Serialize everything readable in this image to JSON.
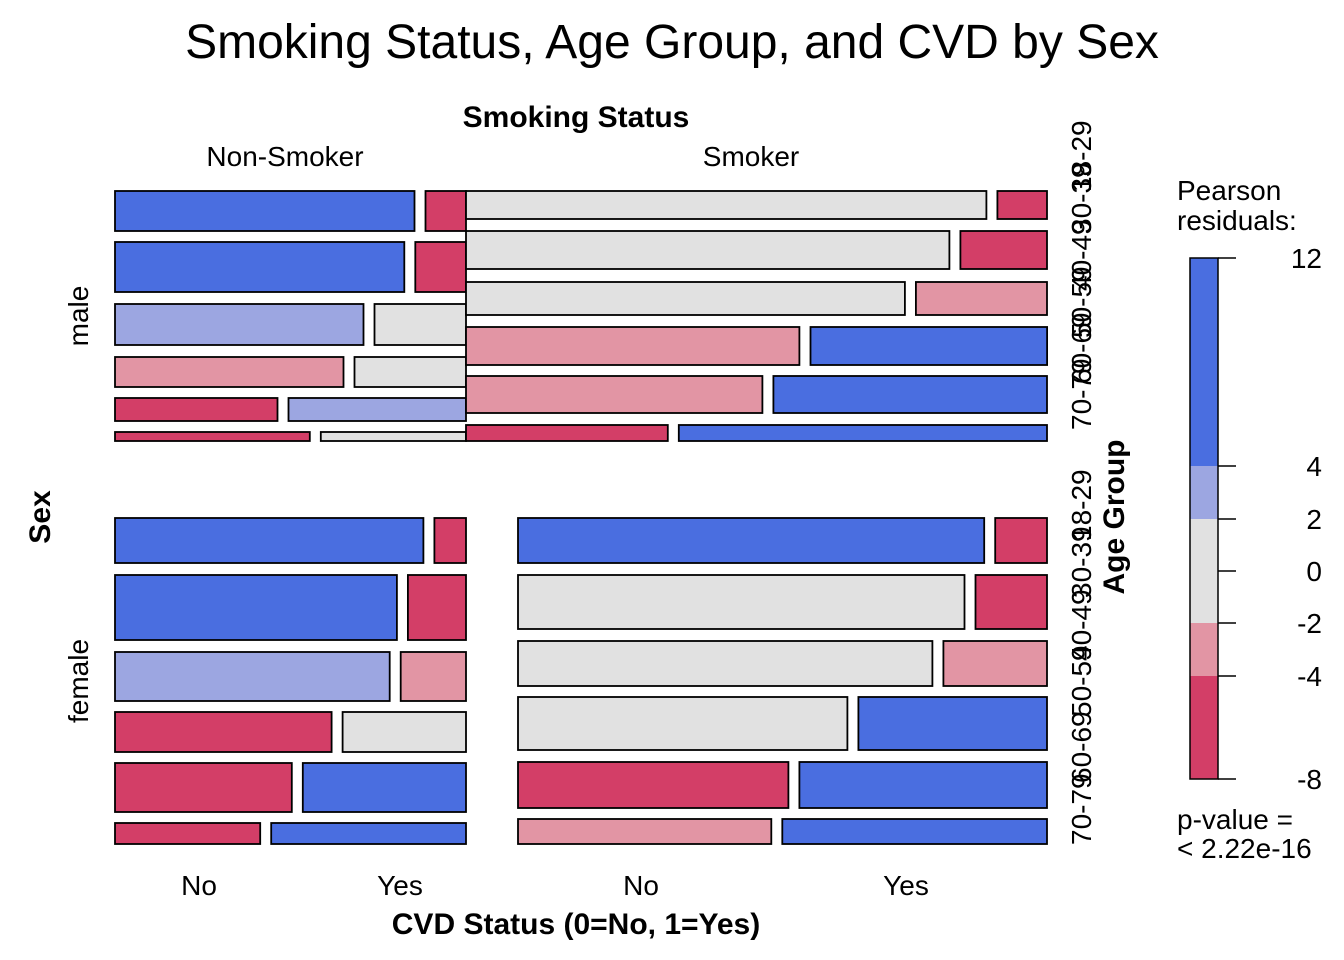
{
  "chart_data": {
    "type": "mosaic",
    "title": "Smoking Status, Age Group, and CVD by Sex",
    "smoking_axis_label": "Smoking Status",
    "smoking_levels": [
      "Non-Smoker",
      "Smoker"
    ],
    "sex_axis_label": "Sex",
    "sex_levels": [
      "male",
      "female"
    ],
    "age_axis_label": "Age Group",
    "age_levels": [
      "18-29",
      "30-39",
      "40-49",
      "50-59",
      "60-69",
      "70-79"
    ],
    "cvd_axis_label": "CVD Status (0=No, 1=Yes)",
    "cvd_levels": [
      "No",
      "Yes"
    ],
    "legend": {
      "title": "Pearson residuals:",
      "breaks": [
        -8,
        -4,
        -2,
        0,
        2,
        4,
        12
      ],
      "ticks": [
        "12",
        "4",
        "2",
        "0",
        "-2",
        "-4",
        "-8"
      ],
      "colors": {
        "strong_pos": "#4a6ee0",
        "mild_pos": "#9ca6e1",
        "neutral": "#e1e1e1",
        "mild_neg": "#e295a4",
        "strong_neg": "#d33e67"
      },
      "pvalue_label": "p-value =",
      "pvalue": "< 2.22e-16"
    },
    "cells": [
      {
        "sex": "male",
        "smoking": "Non-Smoker",
        "age": "18-29",
        "cvd_no_share": 0.881,
        "residual_no": "strong_pos",
        "residual_yes": "strong_neg"
      },
      {
        "sex": "male",
        "smoking": "Non-Smoker",
        "age": "30-39",
        "cvd_no_share": 0.851,
        "residual_no": "strong_pos",
        "residual_yes": "strong_neg"
      },
      {
        "sex": "male",
        "smoking": "Non-Smoker",
        "age": "40-49",
        "cvd_no_share": 0.731,
        "residual_no": "mild_pos",
        "residual_yes": "neutral"
      },
      {
        "sex": "male",
        "smoking": "Non-Smoker",
        "age": "50-59",
        "cvd_no_share": 0.672,
        "residual_no": "mild_neg",
        "residual_yes": "neutral"
      },
      {
        "sex": "male",
        "smoking": "Non-Smoker",
        "age": "60-69",
        "cvd_no_share": 0.478,
        "residual_no": "strong_neg",
        "residual_yes": "mild_pos"
      },
      {
        "sex": "male",
        "smoking": "Non-Smoker",
        "age": "70-79",
        "cvd_no_share": 0.573,
        "residual_no": "strong_neg",
        "residual_yes": "neutral"
      },
      {
        "sex": "male",
        "smoking": "Smoker",
        "age": "18-29",
        "cvd_no_share": 0.913,
        "residual_no": "neutral",
        "residual_yes": "strong_neg"
      },
      {
        "sex": "male",
        "smoking": "Smoker",
        "age": "30-39",
        "cvd_no_share": 0.848,
        "residual_no": "neutral",
        "residual_yes": "strong_neg"
      },
      {
        "sex": "male",
        "smoking": "Smoker",
        "age": "40-49",
        "cvd_no_share": 0.77,
        "residual_no": "neutral",
        "residual_yes": "mild_neg"
      },
      {
        "sex": "male",
        "smoking": "Smoker",
        "age": "50-59",
        "cvd_no_share": 0.585,
        "residual_no": "mild_neg",
        "residual_yes": "strong_pos"
      },
      {
        "sex": "male",
        "smoking": "Smoker",
        "age": "60-69",
        "cvd_no_share": 0.52,
        "residual_no": "mild_neg",
        "residual_yes": "strong_pos"
      },
      {
        "sex": "male",
        "smoking": "Smoker",
        "age": "70-79",
        "cvd_no_share": 0.354,
        "residual_no": "strong_neg",
        "residual_yes": "strong_pos"
      },
      {
        "sex": "female",
        "smoking": "Non-Smoker",
        "age": "18-29",
        "cvd_no_share": 0.907,
        "residual_no": "strong_pos",
        "residual_yes": "strong_neg"
      },
      {
        "sex": "female",
        "smoking": "Non-Smoker",
        "age": "30-39",
        "cvd_no_share": 0.829,
        "residual_no": "strong_pos",
        "residual_yes": "strong_neg"
      },
      {
        "sex": "female",
        "smoking": "Non-Smoker",
        "age": "40-49",
        "cvd_no_share": 0.808,
        "residual_no": "mild_pos",
        "residual_yes": "mild_neg"
      },
      {
        "sex": "female",
        "smoking": "Non-Smoker",
        "age": "50-59",
        "cvd_no_share": 0.637,
        "residual_no": "strong_neg",
        "residual_yes": "neutral"
      },
      {
        "sex": "female",
        "smoking": "Non-Smoker",
        "age": "60-69",
        "cvd_no_share": 0.52,
        "residual_no": "strong_neg",
        "residual_yes": "strong_pos"
      },
      {
        "sex": "female",
        "smoking": "Non-Smoker",
        "age": "70-79",
        "cvd_no_share": 0.427,
        "residual_no": "strong_neg",
        "residual_yes": "strong_pos"
      },
      {
        "sex": "female",
        "smoking": "Smoker",
        "age": "18-29",
        "cvd_no_share": 0.9,
        "residual_no": "strong_pos",
        "residual_yes": "strong_neg"
      },
      {
        "sex": "female",
        "smoking": "Smoker",
        "age": "30-39",
        "cvd_no_share": 0.862,
        "residual_no": "neutral",
        "residual_yes": "strong_neg"
      },
      {
        "sex": "female",
        "smoking": "Smoker",
        "age": "40-49",
        "cvd_no_share": 0.8,
        "residual_no": "neutral",
        "residual_yes": "mild_neg"
      },
      {
        "sex": "female",
        "smoking": "Smoker",
        "age": "50-59",
        "cvd_no_share": 0.636,
        "residual_no": "neutral",
        "residual_yes": "strong_pos"
      },
      {
        "sex": "female",
        "smoking": "Smoker",
        "age": "60-69",
        "cvd_no_share": 0.522,
        "residual_no": "strong_neg",
        "residual_yes": "strong_pos"
      },
      {
        "sex": "female",
        "smoking": "Smoker",
        "age": "70-79",
        "cvd_no_share": 0.489,
        "residual_no": "mild_neg",
        "residual_yes": "strong_pos"
      }
    ]
  }
}
